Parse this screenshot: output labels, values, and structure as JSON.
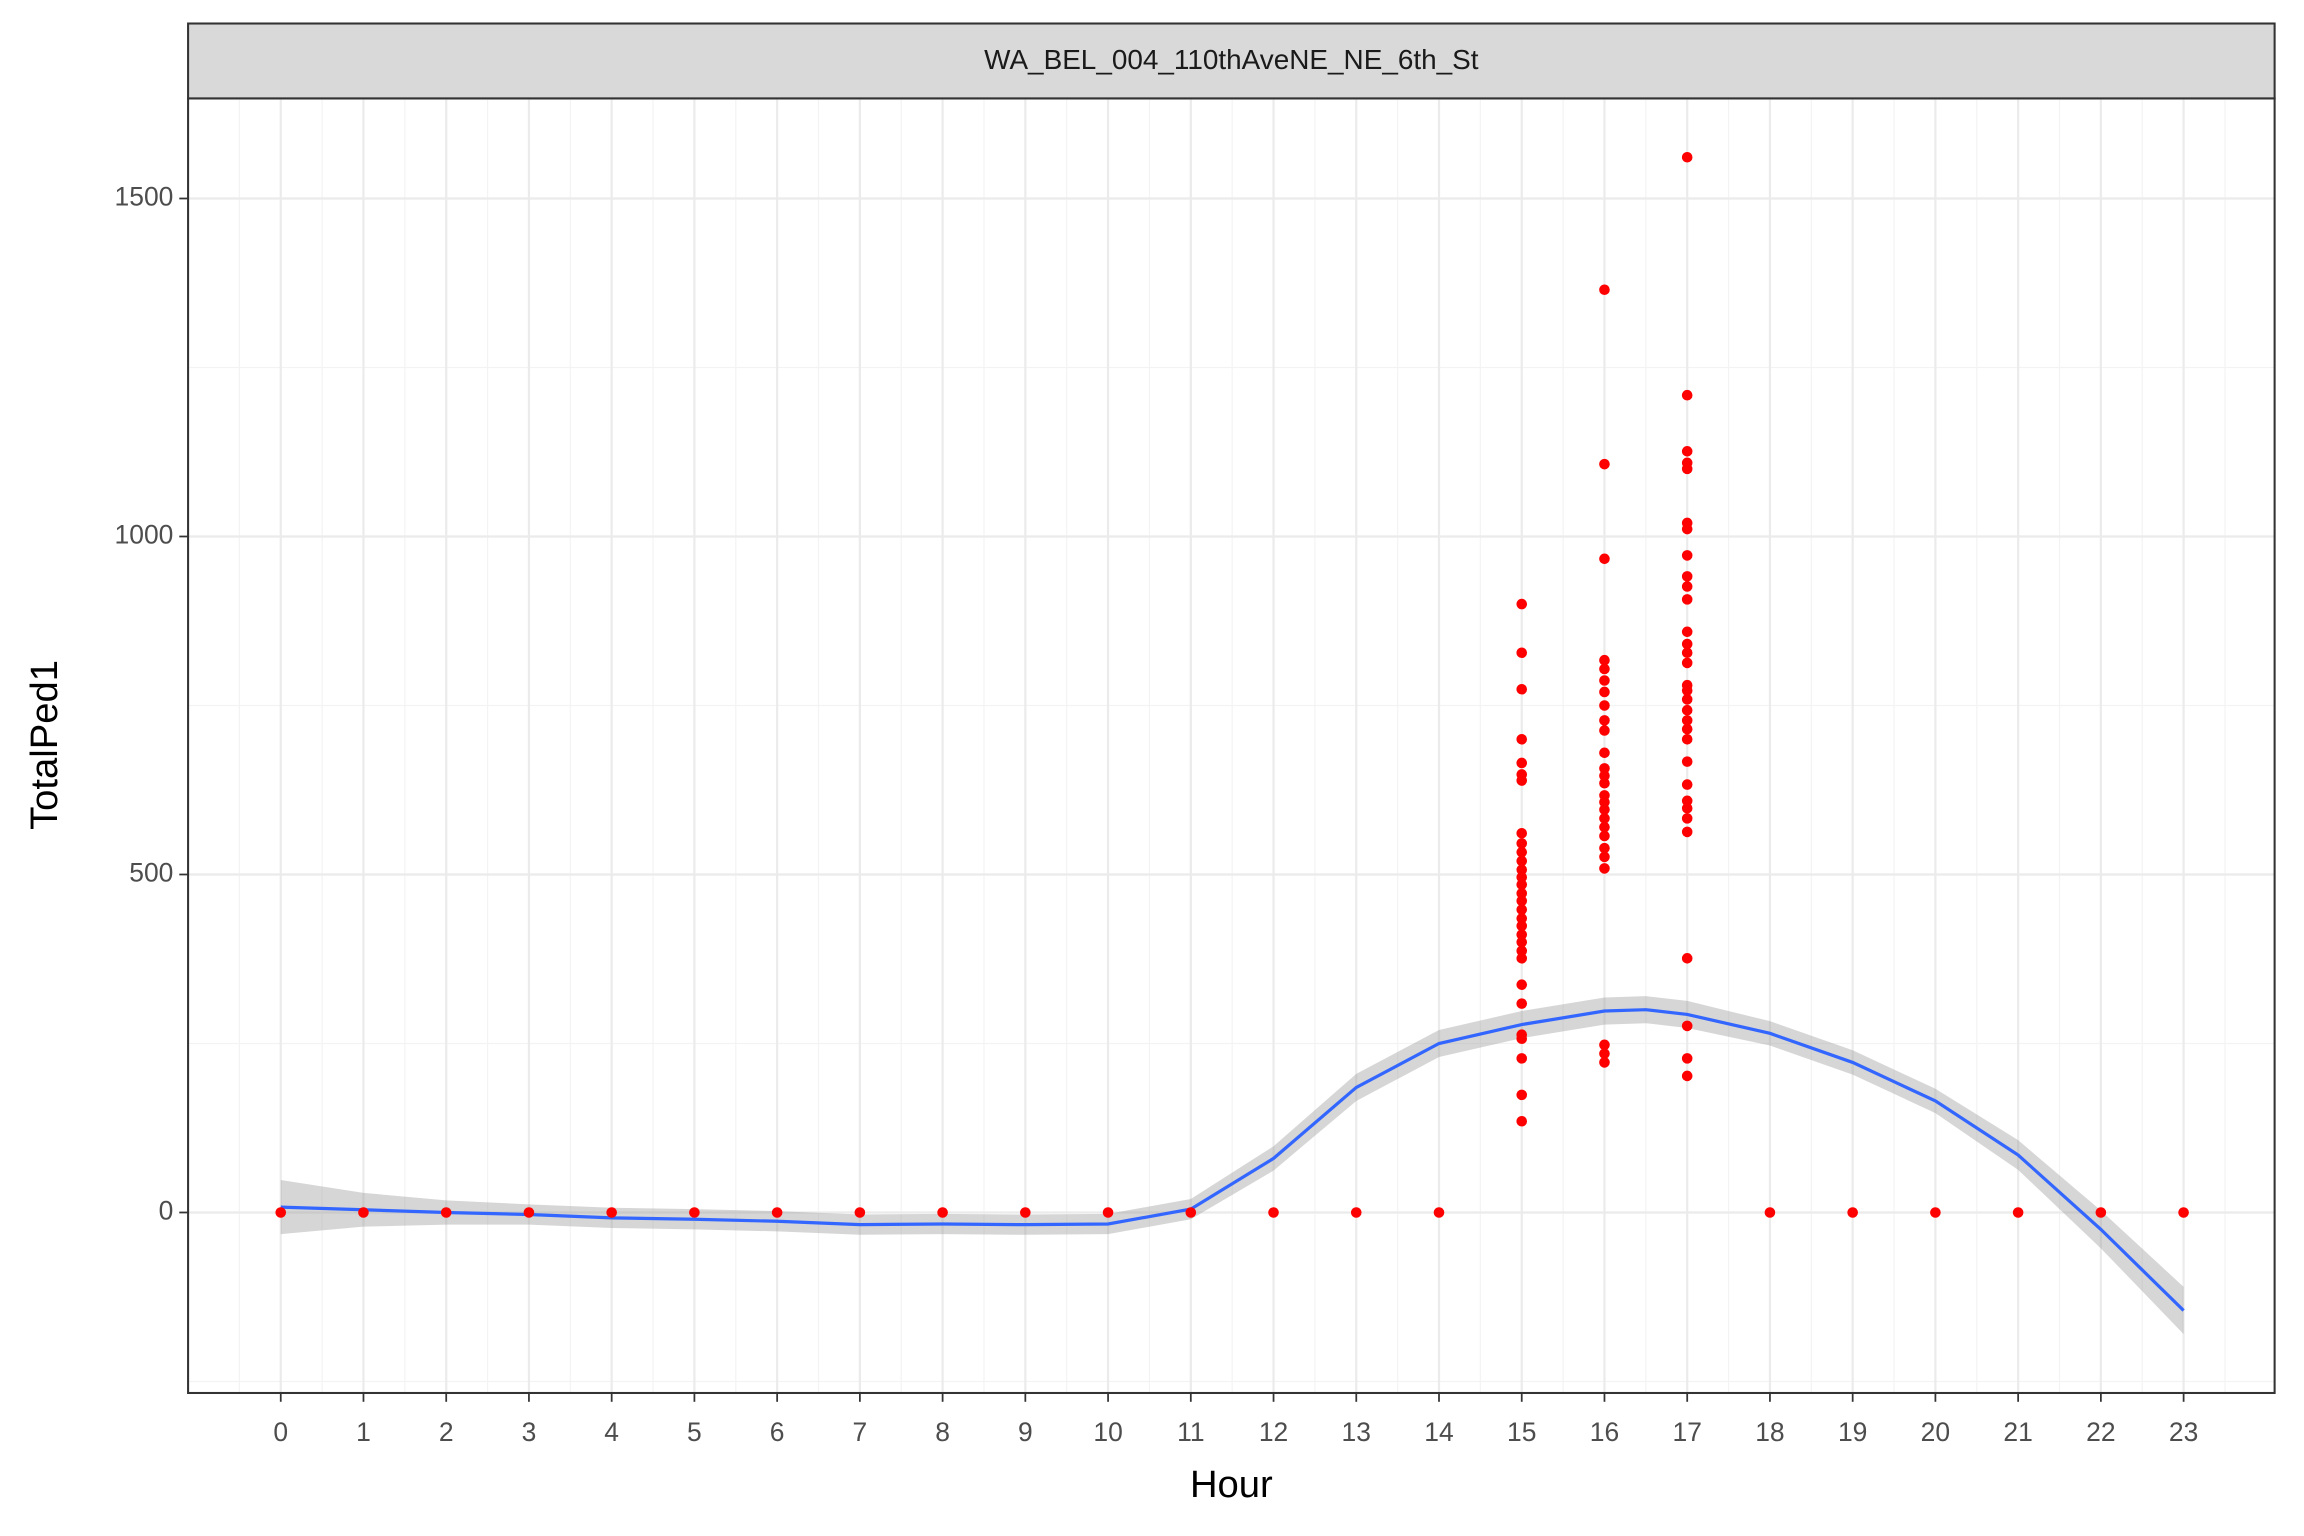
{
  "chart_data": {
    "type": "scatter",
    "title": "WA_BEL_004_110thAveNE_NE_6th_St",
    "xlabel": "Hour",
    "ylabel": "TotalPed1",
    "xlim": [
      -1.12,
      24.1
    ],
    "ylim": [
      -267,
      1648
    ],
    "xticks": [
      0,
      1,
      2,
      3,
      4,
      5,
      6,
      7,
      8,
      9,
      10,
      11,
      12,
      13,
      14,
      15,
      16,
      17,
      18,
      19,
      20,
      21,
      22,
      23
    ],
    "yticks": [
      0,
      500,
      1000,
      1500
    ],
    "x_minor_grid": [
      -0.5,
      0.5,
      1.5,
      2.5,
      3.5,
      4.5,
      5.5,
      6.5,
      7.5,
      8.5,
      9.5,
      10.5,
      11.5,
      12.5,
      13.5,
      14.5,
      15.5,
      16.5,
      17.5,
      18.5,
      19.5,
      20.5,
      21.5,
      22.5,
      23.5
    ],
    "y_minor_grid": [
      -250,
      250,
      750,
      1250
    ],
    "grid": true,
    "series": [
      {
        "kind": "points",
        "color": "#ff0000",
        "x": [
          0,
          1,
          2,
          3,
          4,
          5,
          6,
          7,
          8,
          9,
          10,
          11,
          12,
          13,
          14,
          15,
          15,
          15,
          15,
          15,
          15,
          15,
          15,
          15,
          15,
          15,
          15,
          15,
          15,
          15,
          15,
          15,
          15,
          15,
          15,
          15,
          15,
          15,
          15,
          15,
          15,
          15,
          15,
          15,
          15,
          16,
          16,
          16,
          16,
          16,
          16,
          16,
          16,
          16,
          16,
          16,
          16,
          16,
          16,
          16,
          16,
          16,
          16,
          16,
          16,
          16,
          16,
          16,
          16,
          16,
          16,
          17,
          17,
          17,
          17,
          17,
          17,
          17,
          17,
          17,
          17,
          17,
          17,
          17,
          17,
          17,
          17,
          17,
          17,
          17,
          17,
          17,
          17,
          17,
          17,
          17,
          17,
          17,
          17,
          17,
          17,
          17,
          17,
          18,
          19,
          20,
          21,
          22,
          23
        ],
        "values": [
          0,
          0,
          0,
          0,
          0,
          0,
          0,
          0,
          0,
          0,
          0,
          0,
          0,
          0,
          0,
          900,
          828,
          774,
          700,
          665,
          648,
          639,
          561,
          546,
          533,
          520,
          507,
          496,
          485,
          472,
          461,
          448,
          435,
          424,
          411,
          400,
          387,
          376,
          337,
          309,
          263,
          257,
          228,
          174,
          135,
          1365,
          1107,
          967,
          817,
          804,
          787,
          770,
          750,
          728,
          713,
          680,
          657,
          646,
          635,
          617,
          607,
          596,
          583,
          570,
          557,
          539,
          526,
          509,
          248,
          235,
          222,
          1561,
          1209,
          1126,
          1109,
          1100,
          1020,
          1011,
          972,
          941,
          926,
          907,
          859,
          841,
          828,
          813,
          780,
          772,
          759,
          743,
          728,
          715,
          700,
          667,
          633,
          609,
          598,
          583,
          563,
          376,
          276,
          228,
          202,
          0,
          0,
          0,
          0,
          0,
          0
        ]
      },
      {
        "kind": "smooth",
        "color": "#3366ff",
        "band_color": "#999999",
        "x": [
          0,
          1,
          2,
          3,
          4,
          5,
          6,
          7,
          8,
          9,
          10,
          11,
          12,
          13,
          14,
          15,
          16,
          16.5,
          17,
          18,
          19,
          20,
          21,
          22,
          23
        ],
        "values": [
          8,
          4,
          0,
          -3,
          -8,
          -10,
          -13,
          -18,
          -17,
          -18,
          -17,
          5,
          80,
          185,
          250,
          278,
          298,
          300,
          293,
          265,
          222,
          165,
          85,
          -25,
          -145
        ],
        "lower": [
          -32,
          -21,
          -18,
          -18,
          -23,
          -25,
          -28,
          -33,
          -32,
          -33,
          -32,
          -10,
          62,
          165,
          230,
          258,
          278,
          280,
          273,
          247,
          204,
          147,
          63,
          -53,
          -180
        ],
        "upper": [
          48,
          29,
          18,
          12,
          7,
          5,
          2,
          -3,
          -2,
          -3,
          -2,
          20,
          98,
          205,
          270,
          298,
          318,
          320,
          313,
          283,
          240,
          183,
          107,
          3,
          -110
        ]
      }
    ]
  }
}
